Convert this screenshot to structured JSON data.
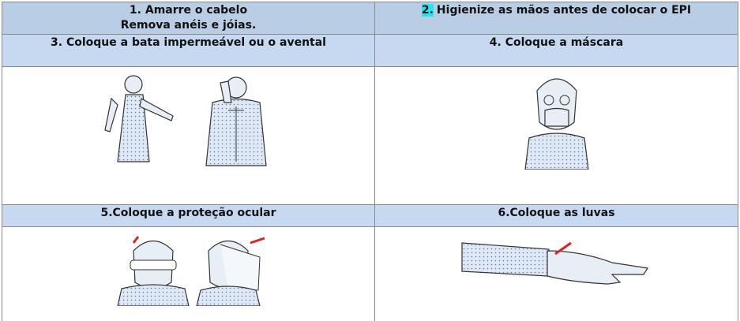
{
  "table": {
    "rows": [
      [
        {
          "lines": [
            "1. Amarre o cabelo",
            "Remova anéis e jóias."
          ]
        },
        {
          "marker": "2.",
          "text": "Higienize as mãos antes de colocar o EPI"
        }
      ],
      [
        "3. Coloque a bata impermeável ou o avental",
        "4. Coloque a máscara"
      ],
      [
        "5.Coloque a proteção ocular",
        "6.Coloque as luvas"
      ]
    ]
  }
}
